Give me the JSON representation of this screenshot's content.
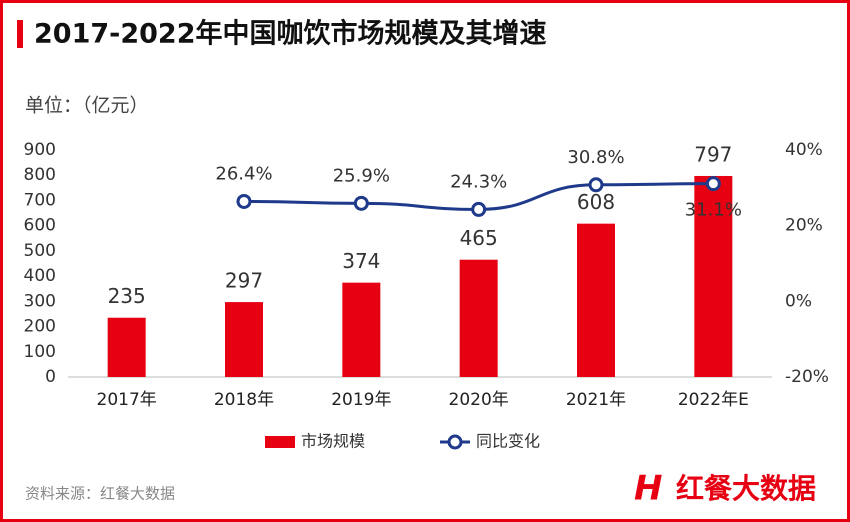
{
  "chart_data": {
    "type": "bar",
    "title": "2017-2022年中国咖饮市场规模及其增速",
    "unit_label": "单位：（亿元）",
    "categories": [
      "2017年",
      "2018年",
      "2019年",
      "2020年",
      "2021年",
      "2022年E"
    ],
    "series": [
      {
        "name": "市场规模",
        "color": "#e60012",
        "values": [
          235,
          297,
          374,
          465,
          608,
          797
        ]
      },
      {
        "name": "同比变化",
        "type": "line",
        "axis": "y2",
        "color": "#1f3a8a",
        "values": [
          null,
          26.4,
          25.9,
          24.3,
          30.8,
          31.1
        ],
        "value_labels": [
          null,
          "26.4%",
          "25.9%",
          "24.3%",
          "30.8%",
          "31.1%"
        ]
      }
    ],
    "ylim": [
      0,
      900
    ],
    "yticks": [
      0,
      100,
      200,
      300,
      400,
      500,
      600,
      700,
      800,
      900
    ],
    "y2lim": [
      -20,
      40
    ],
    "y2ticks": [
      {
        "value": -20,
        "label": "-20%"
      },
      {
        "value": 0,
        "label": "0%"
      },
      {
        "value": 20,
        "label": "20%"
      },
      {
        "value": 40,
        "label": "40%"
      }
    ],
    "source": "资料来源：红餐大数据",
    "logo": "红餐大数据"
  }
}
